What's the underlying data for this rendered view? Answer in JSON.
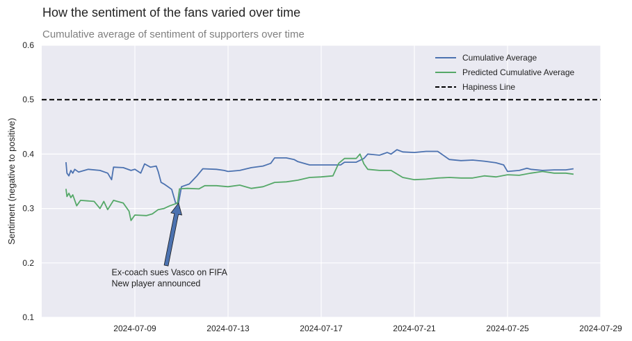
{
  "chart_data": {
    "type": "line",
    "title": "How the sentiment of the fans varied over time",
    "subtitle": "Cumulative average of sentiment of supporters over time",
    "ylabel": "Sentiment (negative to positive)",
    "xlabel": "",
    "xlim": [
      "2024-07-05",
      "2024-07-29"
    ],
    "ylim": [
      0.1,
      0.6
    ],
    "x_ticks": [
      "2024-07-09",
      "2024-07-13",
      "2024-07-17",
      "2024-07-21",
      "2024-07-25",
      "2024-07-29"
    ],
    "y_ticks": [
      "0.1",
      "0.2",
      "0.3",
      "0.4",
      "0.5",
      "0.6"
    ],
    "grid": true,
    "legend_position": "top-right",
    "series": [
      {
        "name": "Cumulative Average",
        "color": "#4c72b0",
        "points": [
          [
            "2024-07-06 01:00",
            0.385
          ],
          [
            "2024-07-06 02:00",
            0.365
          ],
          [
            "2024-07-06 04:00",
            0.36
          ],
          [
            "2024-07-06 06:00",
            0.37
          ],
          [
            "2024-07-06 08:00",
            0.365
          ],
          [
            "2024-07-06 10:00",
            0.372
          ],
          [
            "2024-07-06 14:00",
            0.367
          ],
          [
            "2024-07-07 00:00",
            0.372
          ],
          [
            "2024-07-07 12:00",
            0.37
          ],
          [
            "2024-07-07 20:00",
            0.365
          ],
          [
            "2024-07-08 00:00",
            0.353
          ],
          [
            "2024-07-08 02:00",
            0.376
          ],
          [
            "2024-07-08 12:00",
            0.375
          ],
          [
            "2024-07-08 20:00",
            0.37
          ],
          [
            "2024-07-09 00:00",
            0.372
          ],
          [
            "2024-07-09 06:00",
            0.365
          ],
          [
            "2024-07-09 10:00",
            0.382
          ],
          [
            "2024-07-09 16:00",
            0.376
          ],
          [
            "2024-07-09 22:00",
            0.378
          ],
          [
            "2024-07-10 00:00",
            0.368
          ],
          [
            "2024-07-10 03:00",
            0.348
          ],
          [
            "2024-07-10 06:00",
            0.345
          ],
          [
            "2024-07-10 10:00",
            0.34
          ],
          [
            "2024-07-10 14:00",
            0.335
          ],
          [
            "2024-07-10 18:00",
            0.31
          ],
          [
            "2024-07-10 21:00",
            0.31
          ],
          [
            "2024-07-11 00:00",
            0.34
          ],
          [
            "2024-07-11 08:00",
            0.345
          ],
          [
            "2024-07-11 16:00",
            0.36
          ],
          [
            "2024-07-11 22:00",
            0.373
          ],
          [
            "2024-07-12 12:00",
            0.372
          ],
          [
            "2024-07-12 20:00",
            0.37
          ],
          [
            "2024-07-13 00:00",
            0.368
          ],
          [
            "2024-07-13 12:00",
            0.37
          ],
          [
            "2024-07-14 00:00",
            0.375
          ],
          [
            "2024-07-14 12:00",
            0.378
          ],
          [
            "2024-07-14 20:00",
            0.383
          ],
          [
            "2024-07-15 00:00",
            0.393
          ],
          [
            "2024-07-15 12:00",
            0.393
          ],
          [
            "2024-07-15 20:00",
            0.39
          ],
          [
            "2024-07-16 00:00",
            0.386
          ],
          [
            "2024-07-16 12:00",
            0.38
          ],
          [
            "2024-07-17 00:00",
            0.38
          ],
          [
            "2024-07-17 12:00",
            0.38
          ],
          [
            "2024-07-17 20:00",
            0.38
          ],
          [
            "2024-07-18 00:00",
            0.385
          ],
          [
            "2024-07-18 12:00",
            0.385
          ],
          [
            "2024-07-18 20:00",
            0.392
          ],
          [
            "2024-07-19 00:00",
            0.4
          ],
          [
            "2024-07-19 12:00",
            0.398
          ],
          [
            "2024-07-19 20:00",
            0.403
          ],
          [
            "2024-07-20 00:00",
            0.4
          ],
          [
            "2024-07-20 06:00",
            0.408
          ],
          [
            "2024-07-20 12:00",
            0.404
          ],
          [
            "2024-07-21 00:00",
            0.403
          ],
          [
            "2024-07-21 12:00",
            0.405
          ],
          [
            "2024-07-22 00:00",
            0.405
          ],
          [
            "2024-07-22 12:00",
            0.39
          ],
          [
            "2024-07-23 00:00",
            0.388
          ],
          [
            "2024-07-23 12:00",
            0.389
          ],
          [
            "2024-07-24 00:00",
            0.387
          ],
          [
            "2024-07-24 12:00",
            0.384
          ],
          [
            "2024-07-24 20:00",
            0.38
          ],
          [
            "2024-07-25 00:00",
            0.368
          ],
          [
            "2024-07-25 12:00",
            0.37
          ],
          [
            "2024-07-25 20:00",
            0.374
          ],
          [
            "2024-07-26 00:00",
            0.372
          ],
          [
            "2024-07-26 12:00",
            0.37
          ],
          [
            "2024-07-27 00:00",
            0.371
          ],
          [
            "2024-07-27 12:00",
            0.371
          ],
          [
            "2024-07-27 20:00",
            0.373
          ]
        ]
      },
      {
        "name": "Predicted Cumulative Average",
        "color": "#55a868",
        "points": [
          [
            "2024-07-06 01:00",
            0.336
          ],
          [
            "2024-07-06 02:00",
            0.322
          ],
          [
            "2024-07-06 04:00",
            0.328
          ],
          [
            "2024-07-06 06:00",
            0.32
          ],
          [
            "2024-07-06 08:00",
            0.325
          ],
          [
            "2024-07-06 12:00",
            0.305
          ],
          [
            "2024-07-06 16:00",
            0.315
          ],
          [
            "2024-07-07 06:00",
            0.313
          ],
          [
            "2024-07-07 12:00",
            0.3
          ],
          [
            "2024-07-07 16:00",
            0.313
          ],
          [
            "2024-07-07 20:00",
            0.298
          ],
          [
            "2024-07-08 02:00",
            0.315
          ],
          [
            "2024-07-08 12:00",
            0.31
          ],
          [
            "2024-07-08 18:00",
            0.295
          ],
          [
            "2024-07-08 20:00",
            0.278
          ],
          [
            "2024-07-09 00:00",
            0.288
          ],
          [
            "2024-07-09 12:00",
            0.287
          ],
          [
            "2024-07-09 18:00",
            0.29
          ],
          [
            "2024-07-10 00:00",
            0.298
          ],
          [
            "2024-07-10 06:00",
            0.3
          ],
          [
            "2024-07-10 12:00",
            0.305
          ],
          [
            "2024-07-10 20:00",
            0.31
          ],
          [
            "2024-07-10 22:00",
            0.336
          ],
          [
            "2024-07-11 06:00",
            0.337
          ],
          [
            "2024-07-11 18:00",
            0.336
          ],
          [
            "2024-07-12 00:00",
            0.342
          ],
          [
            "2024-07-12 12:00",
            0.342
          ],
          [
            "2024-07-13 00:00",
            0.34
          ],
          [
            "2024-07-13 12:00",
            0.343
          ],
          [
            "2024-07-14 00:00",
            0.337
          ],
          [
            "2024-07-14 12:00",
            0.34
          ],
          [
            "2024-07-15 00:00",
            0.348
          ],
          [
            "2024-07-15 12:00",
            0.349
          ],
          [
            "2024-07-16 00:00",
            0.352
          ],
          [
            "2024-07-16 12:00",
            0.357
          ],
          [
            "2024-07-17 00:00",
            0.358
          ],
          [
            "2024-07-17 12:00",
            0.36
          ],
          [
            "2024-07-17 18:00",
            0.383
          ],
          [
            "2024-07-18 00:00",
            0.392
          ],
          [
            "2024-07-18 12:00",
            0.392
          ],
          [
            "2024-07-18 16:00",
            0.4
          ],
          [
            "2024-07-18 20:00",
            0.382
          ],
          [
            "2024-07-19 00:00",
            0.372
          ],
          [
            "2024-07-19 12:00",
            0.37
          ],
          [
            "2024-07-20 00:00",
            0.37
          ],
          [
            "2024-07-20 12:00",
            0.357
          ],
          [
            "2024-07-21 00:00",
            0.353
          ],
          [
            "2024-07-21 12:00",
            0.354
          ],
          [
            "2024-07-22 00:00",
            0.356
          ],
          [
            "2024-07-22 12:00",
            0.357
          ],
          [
            "2024-07-23 00:00",
            0.356
          ],
          [
            "2024-07-23 12:00",
            0.356
          ],
          [
            "2024-07-24 00:00",
            0.36
          ],
          [
            "2024-07-24 12:00",
            0.358
          ],
          [
            "2024-07-25 00:00",
            0.362
          ],
          [
            "2024-07-25 12:00",
            0.361
          ],
          [
            "2024-07-26 00:00",
            0.365
          ],
          [
            "2024-07-26 12:00",
            0.368
          ],
          [
            "2024-07-27 00:00",
            0.365
          ],
          [
            "2024-07-27 12:00",
            0.365
          ],
          [
            "2024-07-27 20:00",
            0.363
          ]
        ]
      }
    ],
    "reference_lines": [
      {
        "name": "Hapiness Line",
        "y": 0.5,
        "color": "#000000",
        "style": "dashed"
      }
    ],
    "annotations": [
      {
        "lines": [
          "Ex-coach sues Vasco on FIFA",
          "New player announced"
        ],
        "target": [
          "2024-07-10 21:00",
          0.31
        ],
        "text_at": [
          "2024-07-08 00:00",
          0.19
        ],
        "arrow_color": "#4c72b0"
      }
    ]
  }
}
